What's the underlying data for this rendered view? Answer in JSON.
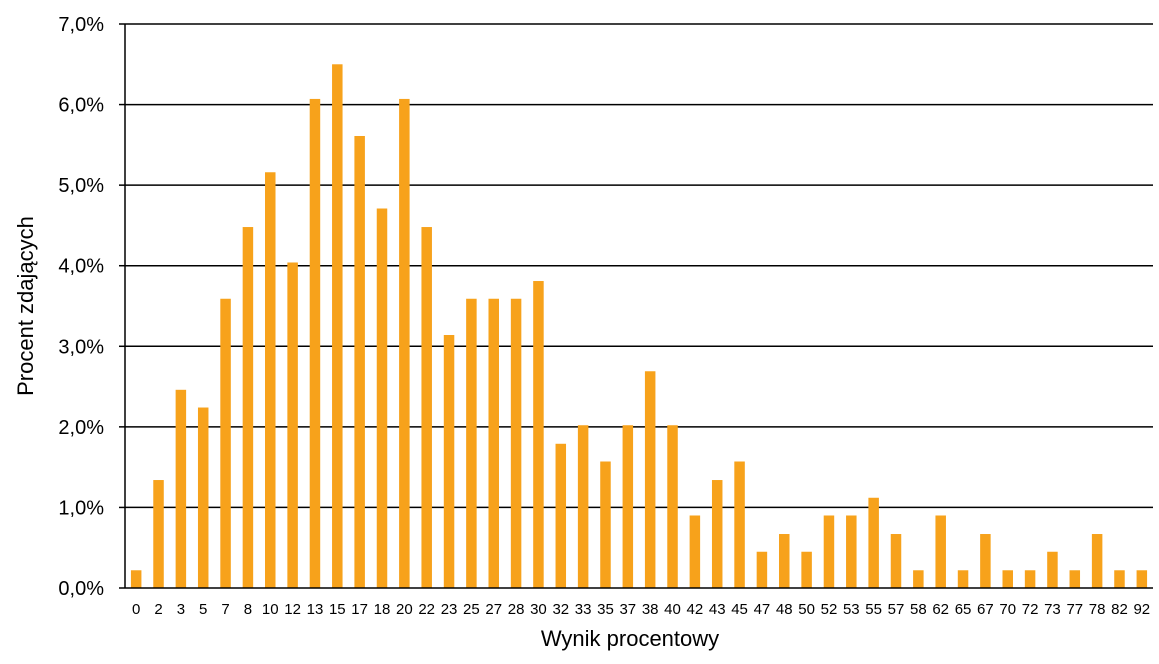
{
  "chart_data": {
    "type": "bar",
    "title": "",
    "xlabel": "Wynik procentowy",
    "ylabel": "Procent zdających",
    "ylim": [
      0,
      7
    ],
    "y_ticks": [
      "0,0%",
      "1,0%",
      "2,0%",
      "3,0%",
      "4,0%",
      "5,0%",
      "6,0%",
      "7,0%"
    ],
    "grid": "horizontal",
    "bar_color": "#F7A21B",
    "categories": [
      "0",
      "2",
      "3",
      "5",
      "7",
      "8",
      "10",
      "12",
      "13",
      "15",
      "17",
      "18",
      "20",
      "22",
      "23",
      "25",
      "27",
      "28",
      "30",
      "32",
      "33",
      "35",
      "37",
      "38",
      "40",
      "42",
      "43",
      "45",
      "47",
      "48",
      "50",
      "52",
      "53",
      "55",
      "57",
      "58",
      "62",
      "65",
      "67",
      "70",
      "72",
      "73",
      "77",
      "78",
      "82",
      "92"
    ],
    "values": [
      0.22,
      1.34,
      2.46,
      2.24,
      3.59,
      4.48,
      5.16,
      4.04,
      6.07,
      6.5,
      5.61,
      4.71,
      6.07,
      4.48,
      3.14,
      3.59,
      3.59,
      3.59,
      3.81,
      1.79,
      2.02,
      1.57,
      2.02,
      2.69,
      2.02,
      0.9,
      1.34,
      1.57,
      0.45,
      0.67,
      0.45,
      0.9,
      0.9,
      1.12,
      0.67,
      0.22,
      0.9,
      0.22,
      0.67,
      0.22,
      0.22,
      0.45,
      0.22,
      0.67,
      0.22,
      0.22
    ]
  }
}
